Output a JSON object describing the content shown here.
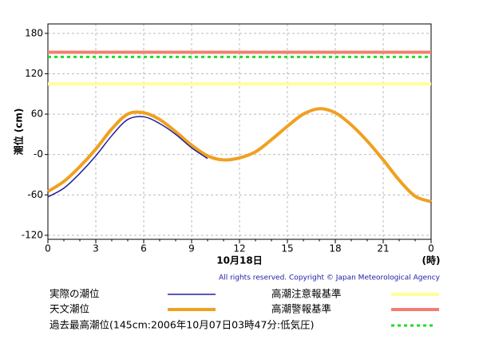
{
  "chart_data": {
    "type": "line",
    "y_label": "潮位 (cm)",
    "x_label": "10月18日",
    "x_unit": "(時)",
    "copyright": "All rights reserved. Copyright © Japan Meteorological Agency",
    "xlim": [
      0,
      24
    ],
    "xticks": [
      0,
      3,
      6,
      9,
      12,
      15,
      18,
      21,
      {
        "value": 24,
        "label": "0"
      }
    ],
    "ylim": [
      -126,
      194
    ],
    "yticks": [
      -120,
      -60,
      {
        "value": 0,
        "label": "-0"
      },
      60,
      120,
      180
    ],
    "grid": true,
    "series": [
      {
        "name": "実際の潮位",
        "color": "#2020a0",
        "x": [
          0,
          1,
          2,
          3,
          4,
          5,
          6,
          7,
          8,
          9,
          10
        ],
        "values": [
          -63,
          -50,
          -28,
          -2,
          28,
          52,
          56,
          46,
          30,
          10,
          -6
        ]
      },
      {
        "name": "天文潮位",
        "color": "#f0a020",
        "x": [
          0,
          1,
          2,
          3,
          4,
          5,
          6,
          7,
          8,
          9,
          10,
          11,
          12,
          13,
          14,
          15,
          16,
          17,
          18,
          19,
          20,
          21,
          22,
          23,
          24
        ],
        "values": [
          -55,
          -40,
          -18,
          8,
          38,
          60,
          62,
          52,
          34,
          14,
          -2,
          -8,
          -5,
          4,
          22,
          42,
          60,
          68,
          62,
          44,
          20,
          -8,
          -38,
          -62,
          -70
        ]
      }
    ],
    "reference_lines": [
      {
        "name": "高潮注意報基準",
        "color": "#ffff99",
        "value": 105
      },
      {
        "name": "高潮警報基準",
        "color": "#f08070",
        "value": 152
      },
      {
        "name": "過去最高潮位(145cm:2006年10月07日03時47分:低気圧)",
        "color": "#22dd22",
        "value": 145,
        "dashed": true
      }
    ]
  }
}
